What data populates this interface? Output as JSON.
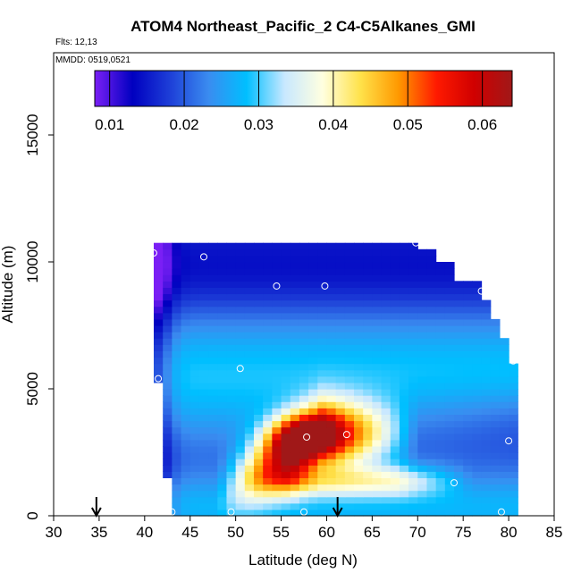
{
  "chart_data": {
    "type": "heatmap",
    "title": "ATOM4 Northeast_Pacific_2 C4-C5Alkanes_GMI",
    "flights_label": "Flts: 12,13",
    "dates_label": "MMDD: 0519,0521",
    "xlabel": "Latitude (deg N)",
    "ylabel": "Altitude (m)",
    "xlim": [
      30,
      85
    ],
    "ylim": [
      0,
      17500
    ],
    "x_ticks": [
      "30",
      "35",
      "40",
      "45",
      "50",
      "55",
      "60",
      "65",
      "70",
      "75",
      "80",
      "85"
    ],
    "y_ticks": [
      "0",
      "5000",
      "10000",
      "15000"
    ],
    "colorbar": {
      "range": [
        0.008,
        0.064
      ],
      "ticks": [
        "0.01",
        "0.02",
        "0.03",
        "0.04",
        "0.05",
        "0.06"
      ],
      "tick_values": [
        0.01,
        0.02,
        0.03,
        0.04,
        0.05,
        0.06
      ],
      "colors": [
        "#7a1ff5",
        "#0000c0",
        "#1e40d8",
        "#3a8cf0",
        "#00bfff",
        "#c8e8ff",
        "#ffffe0",
        "#ffe24a",
        "#ff9900",
        "#ff1a00",
        "#d00000",
        "#a01818"
      ]
    },
    "flight_arrows_lat": [
      34.7,
      61.2
    ],
    "domain_bounds": {
      "lat": [
        41,
        80.5
      ],
      "alt": [
        0,
        10700
      ]
    },
    "sample_points": [
      {
        "lat": 41.0,
        "alt": 10350
      },
      {
        "lat": 46.5,
        "alt": 10200
      },
      {
        "lat": 69.8,
        "alt": 10750
      },
      {
        "lat": 54.5,
        "alt": 9050
      },
      {
        "lat": 59.8,
        "alt": 9050
      },
      {
        "lat": 77.0,
        "alt": 8850
      },
      {
        "lat": 80.5,
        "alt": 6100
      },
      {
        "lat": 50.5,
        "alt": 5800
      },
      {
        "lat": 41.5,
        "alt": 5400
      },
      {
        "lat": 57.8,
        "alt": 3100
      },
      {
        "lat": 62.2,
        "alt": 3200
      },
      {
        "lat": 80.0,
        "alt": 2950
      },
      {
        "lat": 74.0,
        "alt": 1300
      },
      {
        "lat": 43.0,
        "alt": 150
      },
      {
        "lat": 49.5,
        "alt": 150
      },
      {
        "lat": 57.5,
        "alt": 150
      },
      {
        "lat": 79.2,
        "alt": 150
      }
    ]
  }
}
